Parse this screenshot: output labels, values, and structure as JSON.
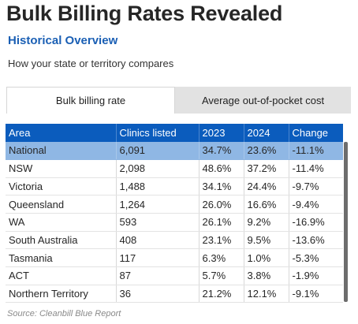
{
  "header": {
    "title": "Bulk Billing Rates Revealed",
    "subtitle": "Historical Overview",
    "description": "How your state or territory compares"
  },
  "tabs": [
    {
      "label": "Bulk billing rate",
      "active": true
    },
    {
      "label": "Average out-of-pocket cost",
      "active": false
    }
  ],
  "table": {
    "columns": [
      "Area",
      "Clinics listed",
      "2023",
      "2024",
      "Change"
    ],
    "rows": [
      [
        "National",
        "6,091",
        "34.7%",
        "23.6%",
        "-11.1%"
      ],
      [
        "NSW",
        "2,098",
        "48.6%",
        "37.2%",
        "-11.4%"
      ],
      [
        "Victoria",
        "1,488",
        "34.1%",
        "24.4%",
        "-9.7%"
      ],
      [
        "Queensland",
        "1,264",
        "26.0%",
        "16.6%",
        "-9.4%"
      ],
      [
        "WA",
        "593",
        "26.1%",
        "9.2%",
        "-16.9%"
      ],
      [
        "South Australia",
        "408",
        "23.1%",
        "9.5%",
        "-13.6%"
      ],
      [
        "Tasmania",
        "117",
        "6.3%",
        "1.0%",
        "-5.3%"
      ],
      [
        "ACT",
        "87",
        "5.7%",
        "3.8%",
        "-1.9%"
      ],
      [
        "Northern Territory",
        "36",
        "21.2%",
        "12.1%",
        "-9.1%"
      ]
    ],
    "highlight_row": 0
  },
  "colors": {
    "header_bg": "#0b5cbd",
    "highlight_bg": "#8fb7e4",
    "subtitle": "#1a5fb4"
  },
  "footer": {
    "source": "Source: Cleanbill Blue Report"
  }
}
